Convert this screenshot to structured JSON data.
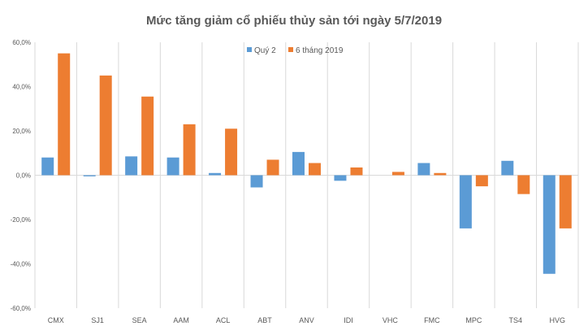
{
  "chart_data": {
    "type": "bar",
    "title": "Mức tăng giảm cổ phiếu thủy sản tới ngày 5/7/2019",
    "categories": [
      "CMX",
      "SJ1",
      "SEA",
      "AAM",
      "ACL",
      "ABT",
      "ANV",
      "IDI",
      "VHC",
      "FMC",
      "MPC",
      "TS4",
      "HVG"
    ],
    "series": [
      {
        "name": "Quý 2",
        "color": "#5b9bd5",
        "values": [
          8.0,
          -0.5,
          8.5,
          8.0,
          1.0,
          -5.5,
          10.5,
          -2.5,
          0.0,
          5.5,
          -24.0,
          6.5,
          -44.5
        ]
      },
      {
        "name": "6 tháng 2019",
        "color": "#ed7d31",
        "values": [
          55.0,
          45.0,
          35.5,
          23.0,
          21.0,
          7.0,
          5.5,
          3.5,
          1.5,
          1.0,
          -5.0,
          -8.5,
          -24.0
        ]
      }
    ],
    "ytick_labels": [
      "60,0%",
      "40,0%",
      "20,0%",
      "0,0%",
      "-20,0%",
      "-40,0%",
      "-60,0%"
    ],
    "ylim": [
      -60,
      60
    ],
    "xlabel": "",
    "ylabel": "",
    "grid": "vertical category lines",
    "legend_position": "top"
  }
}
